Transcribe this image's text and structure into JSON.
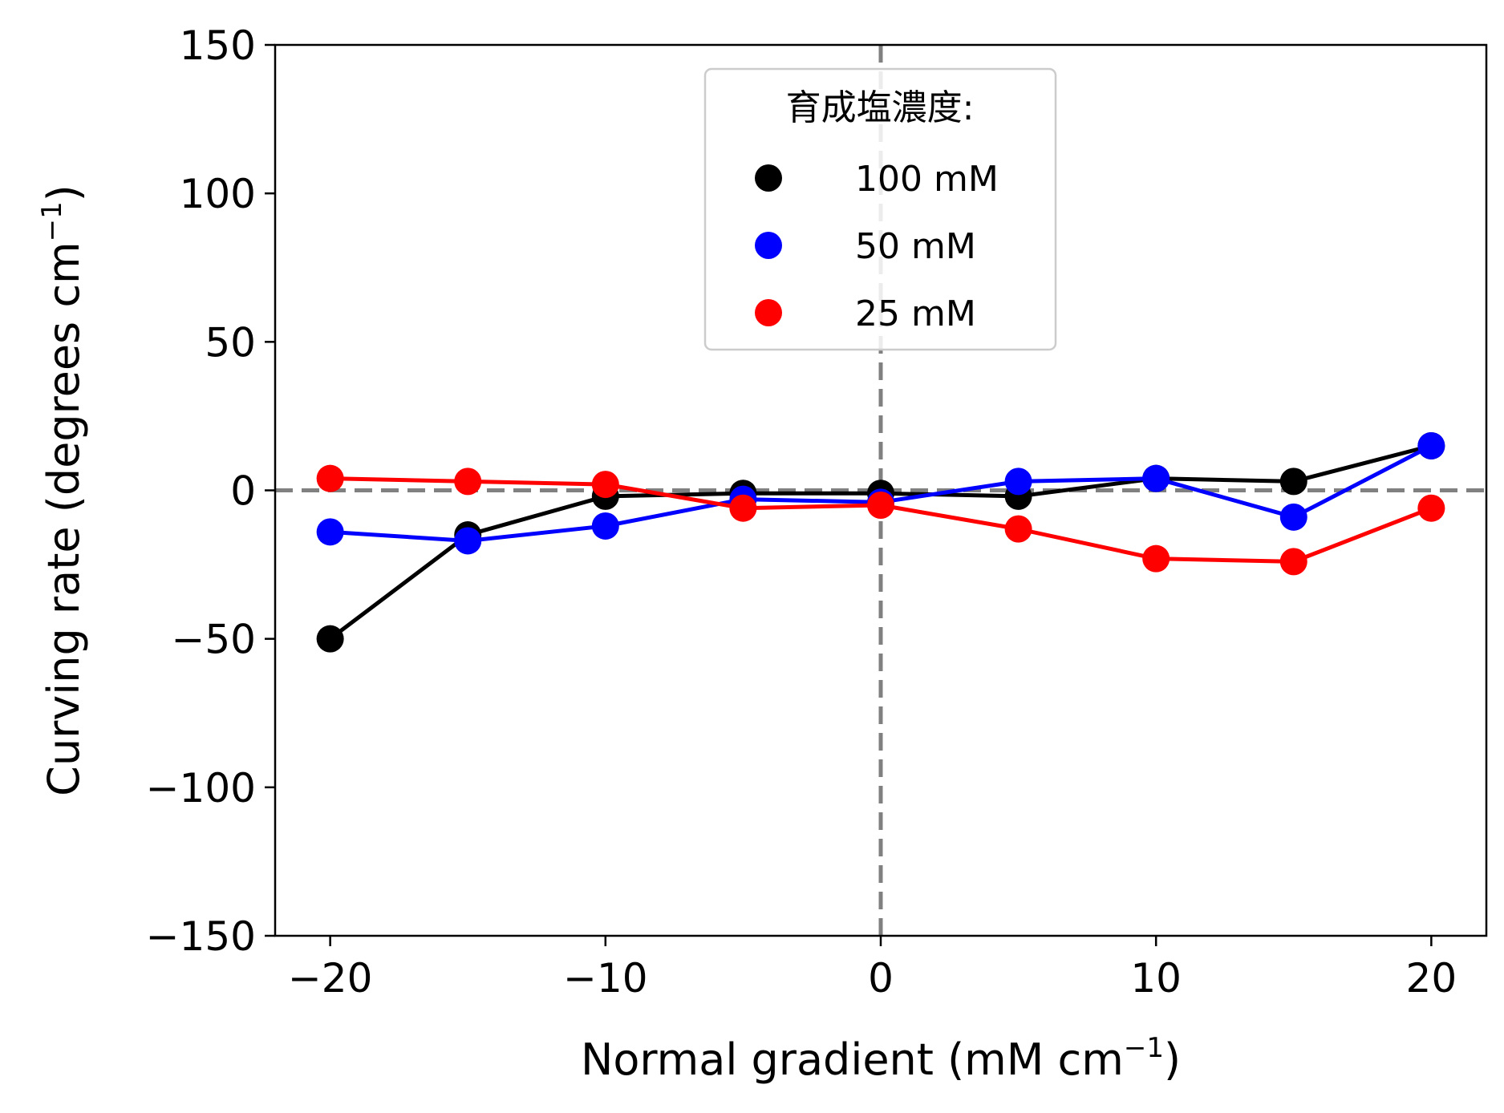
{
  "chart_data": {
    "type": "line",
    "title": "",
    "xlabel_main": "Normal gradient (mM cm",
    "xlabel_sup": "−1",
    "xlabel_tail": ")",
    "ylabel_main": "Curving rate (degrees cm",
    "ylabel_sup": "−1",
    "ylabel_tail": ")",
    "xlim": [
      -22,
      22
    ],
    "ylim": [
      -150,
      150
    ],
    "x_ticks": [
      -20,
      -10,
      0,
      10,
      20
    ],
    "x_tick_labels": [
      "−20",
      "−10",
      "0",
      "10",
      "20"
    ],
    "y_ticks": [
      -150,
      -100,
      -50,
      0,
      50,
      100,
      150
    ],
    "y_tick_labels": [
      "−150",
      "−100",
      "−50",
      "0",
      "50",
      "100",
      "150"
    ],
    "reference_lines": {
      "x": 0,
      "y": 0,
      "color": "#808080",
      "style": "dashed"
    },
    "grid": false,
    "legend": {
      "title": "育成塩濃度:",
      "placement": "top-center"
    },
    "x": [
      -20,
      -15,
      -10,
      -5,
      0,
      5,
      10,
      15,
      20
    ],
    "series": [
      {
        "name": "100 mM",
        "color": "#000000",
        "values": [
          -50,
          -15,
          -2,
          -1,
          -1,
          -2,
          4,
          3,
          15
        ]
      },
      {
        "name": "50 mM",
        "color": "#0000ff",
        "values": [
          -14,
          -17,
          -12,
          -3,
          -4,
          3,
          4,
          -9,
          15
        ]
      },
      {
        "name": "25 mM",
        "color": "#ff0000",
        "values": [
          4,
          3,
          2,
          -6,
          -5,
          -13,
          -23,
          -24,
          -6
        ]
      }
    ]
  }
}
